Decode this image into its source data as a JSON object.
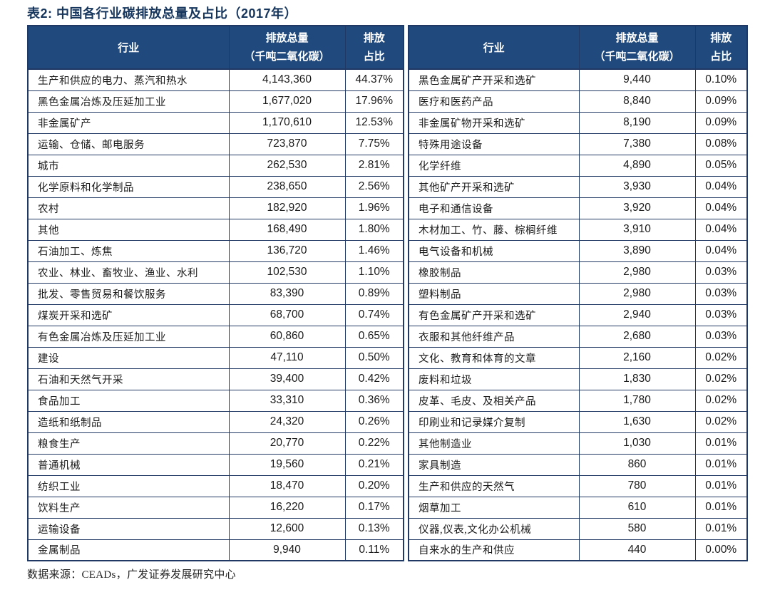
{
  "title": "表2:  中国各行业碳排放总量及占比（2017年）",
  "header": {
    "industry": "行业",
    "total_line1": "排放总量",
    "total_line2": "（千吨二氧化碳）",
    "share_line1": "排放",
    "share_line2": "占比"
  },
  "left_table": {
    "rows": [
      {
        "industry": "生产和供应的电力、蒸汽和热水",
        "total": "4,143,360",
        "share": "44.37%"
      },
      {
        "industry": "黑色金属冶炼及压延加工业",
        "total": "1,677,020",
        "share": "17.96%"
      },
      {
        "industry": "非金属矿产",
        "total": "1,170,610",
        "share": "12.53%"
      },
      {
        "industry": "运输、仓储、邮电服务",
        "total": "723,870",
        "share": "7.75%"
      },
      {
        "industry": "城市",
        "total": "262,530",
        "share": "2.81%"
      },
      {
        "industry": "化学原料和化学制品",
        "total": "238,650",
        "share": "2.56%"
      },
      {
        "industry": "农村",
        "total": "182,920",
        "share": "1.96%"
      },
      {
        "industry": "其他",
        "total": "168,490",
        "share": "1.80%"
      },
      {
        "industry": "石油加工、炼焦",
        "total": "136,720",
        "share": "1.46%"
      },
      {
        "industry": "农业、林业、畜牧业、渔业、水利",
        "total": "102,530",
        "share": "1.10%"
      },
      {
        "industry": "批发、零售贸易和餐饮服务",
        "total": "83,390",
        "share": "0.89%"
      },
      {
        "industry": "煤炭开采和选矿",
        "total": "68,700",
        "share": "0.74%"
      },
      {
        "industry": "有色金属冶炼及压延加工业",
        "total": "60,860",
        "share": "0.65%"
      },
      {
        "industry": "建设",
        "total": "47,110",
        "share": "0.50%"
      },
      {
        "industry": "石油和天然气开采",
        "total": "39,400",
        "share": "0.42%"
      },
      {
        "industry": "食品加工",
        "total": "33,310",
        "share": "0.36%"
      },
      {
        "industry": "造纸和纸制品",
        "total": "24,320",
        "share": "0.26%"
      },
      {
        "industry": "粮食生产",
        "total": "20,770",
        "share": "0.22%"
      },
      {
        "industry": "普通机械",
        "total": "19,560",
        "share": "0.21%"
      },
      {
        "industry": "纺织工业",
        "total": "18,470",
        "share": "0.20%"
      },
      {
        "industry": "饮料生产",
        "total": "16,220",
        "share": "0.17%"
      },
      {
        "industry": "运输设备",
        "total": "12,600",
        "share": "0.13%"
      },
      {
        "industry": "金属制品",
        "total": "9,940",
        "share": "0.11%"
      }
    ]
  },
  "right_table": {
    "rows": [
      {
        "industry": "黑色金属矿产开采和选矿",
        "total": "9,440",
        "share": "0.10%"
      },
      {
        "industry": "医疗和医药产品",
        "total": "8,840",
        "share": "0.09%"
      },
      {
        "industry": "非金属矿物开采和选矿",
        "total": "8,190",
        "share": "0.09%"
      },
      {
        "industry": "特殊用途设备",
        "total": "7,380",
        "share": "0.08%"
      },
      {
        "industry": "化学纤维",
        "total": "4,890",
        "share": "0.05%"
      },
      {
        "industry": "其他矿产开采和选矿",
        "total": "3,930",
        "share": "0.04%"
      },
      {
        "industry": "电子和通信设备",
        "total": "3,920",
        "share": "0.04%"
      },
      {
        "industry": "木材加工、竹、藤、棕榈纤维",
        "total": "3,910",
        "share": "0.04%"
      },
      {
        "industry": "电气设备和机械",
        "total": "3,890",
        "share": "0.04%"
      },
      {
        "industry": "橡胶制品",
        "total": "2,980",
        "share": "0.03%"
      },
      {
        "industry": "塑料制品",
        "total": "2,980",
        "share": "0.03%"
      },
      {
        "industry": "有色金属矿产开采和选矿",
        "total": "2,940",
        "share": "0.03%"
      },
      {
        "industry": "衣服和其他纤维产品",
        "total": "2,680",
        "share": "0.03%"
      },
      {
        "industry": "文化、教育和体育的文章",
        "total": "2,160",
        "share": "0.02%"
      },
      {
        "industry": "废料和垃圾",
        "total": "1,830",
        "share": "0.02%"
      },
      {
        "industry": "皮革、毛皮、及相关产品",
        "total": "1,780",
        "share": "0.02%"
      },
      {
        "industry": "印刷业和记录媒介复制",
        "total": "1,630",
        "share": "0.02%"
      },
      {
        "industry": "其他制造业",
        "total": "1,030",
        "share": "0.01%"
      },
      {
        "industry": "家具制造",
        "total": "860",
        "share": "0.01%"
      },
      {
        "industry": "生产和供应的天然气",
        "total": "780",
        "share": "0.01%"
      },
      {
        "industry": "烟草加工",
        "total": "610",
        "share": "0.01%"
      },
      {
        "industry": "仪器,仪表,文化办公机械",
        "total": "580",
        "share": "0.01%"
      },
      {
        "industry": "自来水的生产和供应",
        "total": "440",
        "share": "0.00%"
      }
    ]
  },
  "footer": {
    "source": "数据来源：CEADs，广发证券发展研究中心"
  },
  "colors": {
    "header_bg": "#204A7D",
    "header_text": "#FFFFFF",
    "border": "#1F3864",
    "title_text": "#17365D",
    "body_text": "#1A1A1A"
  }
}
